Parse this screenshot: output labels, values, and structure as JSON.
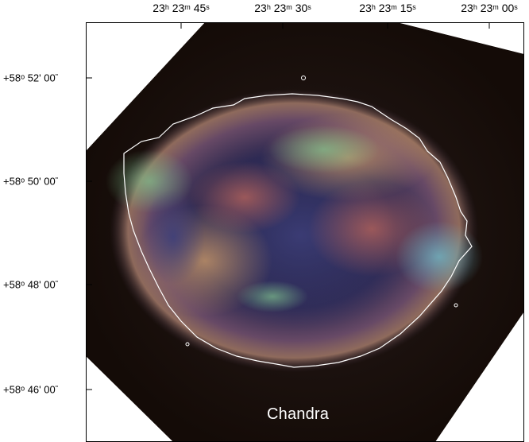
{
  "image": {
    "caption": "Chandra",
    "ra_ticks": [
      {
        "h": "23",
        "m": "23",
        "s": "45"
      },
      {
        "h": "23",
        "m": "23",
        "s": "30"
      },
      {
        "h": "23",
        "m": "23",
        "s": "15"
      },
      {
        "h": "23",
        "m": "23",
        "s": "00"
      }
    ],
    "dec_ticks": [
      {
        "deg": "+58",
        "arcmin": "52'",
        "arcsec": "00"
      },
      {
        "deg": "+58",
        "arcmin": "50'",
        "arcsec": "00"
      },
      {
        "deg": "+58",
        "arcmin": "48'",
        "arcsec": "00"
      },
      {
        "deg": "+58",
        "arcmin": "46'",
        "arcsec": "00"
      }
    ],
    "units": {
      "h": "h",
      "m": "m",
      "s": "s",
      "deg": "o",
      "arcsec": "\""
    }
  }
}
